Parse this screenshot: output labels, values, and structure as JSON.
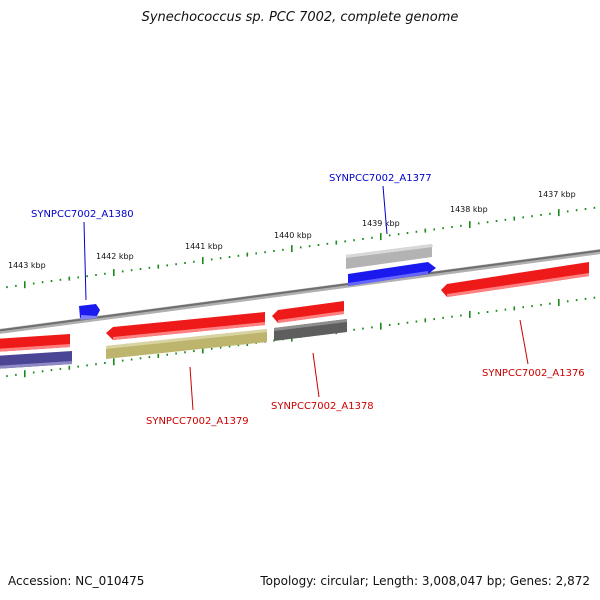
{
  "title": "Synechococcus sp. PCC 7002, complete genome",
  "footer": {
    "accession": "Accession: NC_010475",
    "summary": "Topology: circular; Length: 3,008,047 bp; Genes: 2,872"
  },
  "colors": {
    "backbone": "#808080",
    "ticks": "#1a8a1a",
    "forward_label": "#0000cc",
    "reverse_label": "#cc0000"
  },
  "scale_labels": [
    "1443 kbp",
    "1442 kbp",
    "1441 kbp",
    "1440 kbp",
    "1439 kbp",
    "1438 kbp",
    "1437 kbp"
  ],
  "features": [
    {
      "id": "feat-blue-small",
      "strand": "forward",
      "color": "#1a1aee",
      "label": "SYNPCC7002_A1380"
    },
    {
      "id": "feat-gray-forward",
      "strand": "forward",
      "color": "#b3b3b3",
      "label": ""
    },
    {
      "id": "feat-blue-forward",
      "strand": "forward",
      "color": "#1a1aee",
      "label": "SYNPCC7002_A1377"
    },
    {
      "id": "feat-red-left",
      "strand": "reverse",
      "color": "#ee1a1a",
      "label": ""
    },
    {
      "id": "feat-purple-left",
      "strand": "reverse",
      "color": "#4a4595",
      "label": ""
    },
    {
      "id": "feat-red-1379",
      "strand": "reverse",
      "color": "#ee1a1a",
      "label": ""
    },
    {
      "id": "feat-olive",
      "strand": "reverse",
      "color": "#bdb56e",
      "label": "SYNPCC7002_A1379"
    },
    {
      "id": "feat-red-1378",
      "strand": "reverse",
      "color": "#ee1a1a",
      "label": ""
    },
    {
      "id": "feat-darkgray",
      "strand": "reverse",
      "color": "#5e5e5e",
      "label": "SYNPCC7002_A1378"
    },
    {
      "id": "feat-red-1376",
      "strand": "reverse",
      "color": "#ee1a1a",
      "label": "SYNPCC7002_A1376"
    }
  ]
}
